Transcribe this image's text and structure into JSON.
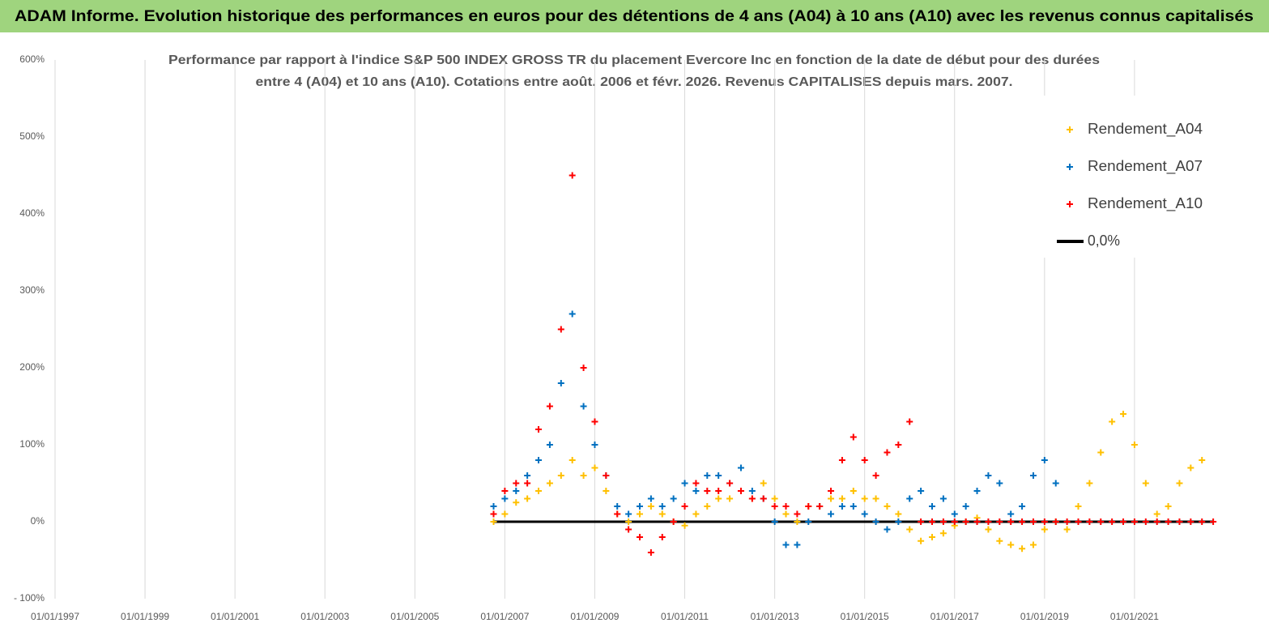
{
  "header": "ADAM Informe. Evolution historique des performances en euros pour des détentions de 4 ans (A04) à 10 ans (A10) avec les revenus connus capitalisés",
  "chart_data": {
    "type": "scatter",
    "title": [
      "Performance par rapport à l'indice S&P 500 INDEX GROSS TR  du placement Evercore Inc en fonction de la date de début pour des durées",
      "entre 4 (A04) et 10 ans (A10). Cotations entre août. 2006 et févr. 2026. Revenus CAPITALISES depuis mars. 2007."
    ],
    "x": [
      "01/10/2006",
      "01/01/2007",
      "01/04/2007",
      "01/07/2007",
      "01/10/2007",
      "01/01/2008",
      "01/04/2008",
      "01/07/2008",
      "01/10/2008",
      "01/01/2009",
      "01/04/2009",
      "01/07/2009",
      "01/10/2009",
      "01/01/2010",
      "01/04/2010",
      "01/07/2010",
      "01/10/2010",
      "01/01/2011",
      "01/04/2011",
      "01/07/2011",
      "01/10/2011",
      "01/01/2012",
      "01/04/2012",
      "01/07/2012",
      "01/10/2012",
      "01/01/2013",
      "01/04/2013",
      "01/07/2013",
      "01/10/2013",
      "01/01/2014",
      "01/04/2014",
      "01/07/2014",
      "01/10/2014",
      "01/01/2015",
      "01/04/2015",
      "01/07/2015",
      "01/10/2015",
      "01/01/2016",
      "01/04/2016",
      "01/07/2016",
      "01/10/2016",
      "01/01/2017",
      "01/04/2017",
      "01/07/2017",
      "01/10/2017",
      "01/01/2018",
      "01/04/2018",
      "01/07/2018",
      "01/10/2018",
      "01/01/2019",
      "01/04/2019",
      "01/07/2019",
      "01/10/2019",
      "01/01/2020",
      "01/04/2020",
      "01/07/2020",
      "01/10/2020",
      "01/01/2021",
      "01/04/2021",
      "01/07/2021",
      "01/10/2021",
      "01/01/2022",
      "01/04/2022",
      "01/07/2022",
      "01/10/2022"
    ],
    "series": [
      {
        "name": "0,0%",
        "color": "#000000",
        "mode": "line",
        "values": [
          0,
          0,
          0,
          0,
          0,
          0,
          0,
          0,
          0,
          0,
          0,
          0,
          0,
          0,
          0,
          0,
          0,
          0,
          0,
          0,
          0,
          0,
          0,
          0,
          0,
          0,
          0,
          0,
          0,
          0,
          0,
          0,
          0,
          0,
          0,
          0,
          0,
          0,
          0,
          0,
          0,
          0,
          0,
          0,
          0,
          0,
          0,
          0,
          0,
          0,
          0,
          0,
          0,
          0,
          0,
          0,
          0,
          0,
          0,
          0,
          0,
          0,
          0,
          0,
          0
        ]
      },
      {
        "name": "Rendement_A04",
        "color": "#ffc000",
        "mode": "markers",
        "values": [
          0,
          10,
          25,
          30,
          40,
          50,
          60,
          80,
          60,
          70,
          40,
          10,
          0,
          10,
          20,
          10,
          0,
          -5,
          10,
          20,
          30,
          30,
          40,
          30,
          50,
          30,
          10,
          0,
          20,
          20,
          30,
          30,
          40,
          30,
          30,
          20,
          10,
          -10,
          -25,
          -20,
          -15,
          -5,
          0,
          5,
          -10,
          -25,
          -30,
          -35,
          -30,
          -10,
          0,
          -10,
          20,
          50,
          90,
          130,
          140,
          100,
          50,
          10,
          20,
          50,
          70,
          80,
          null
        ]
      },
      {
        "name": "Rendement_A07",
        "color": "#0070c0",
        "mode": "markers",
        "values": [
          20,
          30,
          40,
          60,
          80,
          100,
          180,
          270,
          150,
          100,
          60,
          20,
          10,
          20,
          30,
          20,
          30,
          50,
          40,
          60,
          60,
          50,
          70,
          40,
          30,
          0,
          -30,
          -30,
          0,
          20,
          10,
          20,
          20,
          10,
          0,
          -10,
          0,
          30,
          40,
          20,
          30,
          10,
          20,
          40,
          60,
          50,
          10,
          20,
          60,
          80,
          50,
          null,
          null,
          null,
          null,
          null,
          null,
          null,
          null,
          null,
          null,
          null,
          null,
          null,
          null
        ]
      },
      {
        "name": "Rendement_A10",
        "color": "#ff0000",
        "mode": "markers",
        "values": [
          10,
          40,
          50,
          50,
          120,
          150,
          250,
          450,
          200,
          130,
          60,
          10,
          -10,
          -20,
          -40,
          -20,
          0,
          20,
          50,
          40,
          40,
          50,
          40,
          30,
          30,
          20,
          20,
          10,
          20,
          20,
          40,
          80,
          110,
          80,
          60,
          90,
          100,
          130,
          0,
          0,
          0,
          0,
          0,
          0,
          0,
          0,
          0,
          0,
          0,
          0,
          0,
          0,
          0,
          0,
          0,
          0,
          0,
          0,
          0,
          0,
          0,
          0,
          0,
          0,
          0
        ]
      }
    ],
    "legend_order": [
      1,
      2,
      3,
      0
    ],
    "xlim": [
      "01/01/1997",
      "01/01/2023"
    ],
    "xticks": [
      "01/01/1997",
      "01/01/1999",
      "01/01/2001",
      "01/01/2003",
      "01/01/2005",
      "01/01/2007",
      "01/01/2009",
      "01/01/2011",
      "01/01/2013",
      "01/01/2015",
      "01/01/2017",
      "01/01/2019",
      "01/01/2021"
    ],
    "ylim": [
      -100,
      600
    ],
    "yticks": [
      {
        "value": 600,
        "label": "600%"
      },
      {
        "value": 500,
        "label": "500%"
      },
      {
        "value": 400,
        "label": "400%"
      },
      {
        "value": 300,
        "label": "300%"
      },
      {
        "value": 200,
        "label": "200%"
      },
      {
        "value": 100,
        "label": "100%"
      },
      {
        "value": 0,
        "label": "0%"
      },
      {
        "value": -100,
        "label": "- 100%"
      }
    ],
    "grid": "x"
  }
}
